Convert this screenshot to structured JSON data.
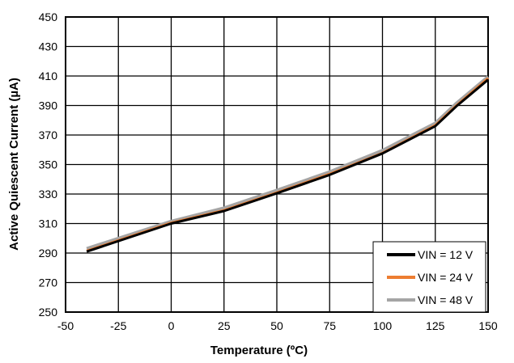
{
  "chart_data": {
    "type": "line",
    "title": "",
    "xlabel": "Temperature (ºC)",
    "ylabel": "Active Quiescent Current (µA)",
    "xlim": [
      -50,
      150
    ],
    "ylim": [
      250,
      450
    ],
    "xticks": [
      -50,
      -25,
      0,
      25,
      50,
      75,
      100,
      125,
      150
    ],
    "yticks": [
      250,
      270,
      290,
      310,
      330,
      350,
      370,
      390,
      410,
      430,
      450
    ],
    "grid": true,
    "legend_position": "bottom-right",
    "x": [
      -40,
      0,
      25,
      50,
      75,
      100,
      125,
      135,
      150
    ],
    "series": [
      {
        "name": "VIN = 12 V",
        "color": "#000000",
        "values": [
          291,
          310,
          318.5,
          330.5,
          343,
          357.5,
          376,
          389.5,
          407.5
        ]
      },
      {
        "name": "VIN = 24 V",
        "color": "#ED7D31",
        "values": [
          291.5,
          310.5,
          319,
          331,
          343.6,
          357.8,
          376.6,
          390,
          408.5
        ]
      },
      {
        "name": "VIN = 48 V",
        "color": "#A5A5A5",
        "values": [
          293,
          311.5,
          320.5,
          332.5,
          345,
          359.5,
          378,
          391.5,
          409.5
        ]
      }
    ]
  }
}
